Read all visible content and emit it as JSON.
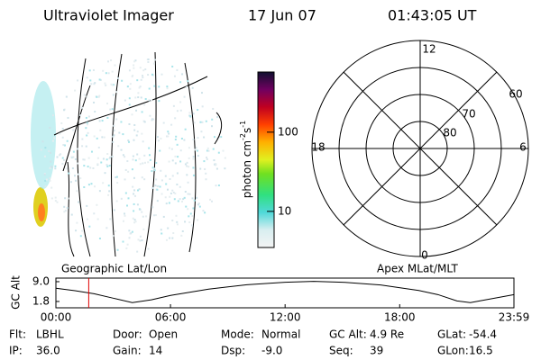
{
  "header": {
    "instrument": "Ultraviolet Imager",
    "date": "17 Jun 07",
    "time": "01:43:05 UT"
  },
  "left_panel": {
    "label": "Geographic Lat/Lon"
  },
  "colorbar": {
    "label": "photon cm",
    "exp1": "-2",
    "unit2": "s",
    "exp2": "-1",
    "log": true,
    "lim": [
      3.5,
      575
    ],
    "ticks": [
      10,
      100
    ]
  },
  "polar": {
    "label": "Apex MLat/MLT",
    "mlt_top": "12",
    "mlt_right": "6",
    "mlt_bottom": "0",
    "mlt_left": "18",
    "lat_labels": [
      "60",
      "70",
      "80"
    ]
  },
  "altitude_plot": {
    "ylabel": "GC Alt",
    "yticks": [
      {
        "value": 9,
        "label": "9.0"
      },
      1.8
    ],
    "ylim": [
      -0.5,
      10.3
    ],
    "xticks": [
      {
        "value": 0,
        "label": "00:00"
      },
      {
        "value": 6,
        "label": "06:00"
      },
      {
        "value": 12,
        "label": "12:00"
      },
      {
        "value": 18,
        "label": "18:00"
      },
      {
        "value": 23.983,
        "label": "23:59"
      }
    ],
    "xlim": [
      0,
      23.983
    ],
    "marker_time": 1.718,
    "x": [
      0,
      1,
      2,
      3,
      4,
      5,
      6,
      8,
      10,
      12,
      13.5,
      15,
      17,
      19,
      20,
      21,
      21.7,
      22.5,
      23.983
    ],
    "values": [
      6.6,
      5.7,
      4.6,
      3.0,
      1.4,
      2.4,
      4.0,
      6.3,
      7.9,
      8.8,
      9.1,
      8.8,
      7.8,
      5.8,
      4.3,
      2.0,
      1.4,
      2.4,
      4.3
    ]
  },
  "status": [
    {
      "label": "Flt:",
      "value": "LBHL"
    },
    {
      "label": "Door:",
      "value": "Open"
    },
    {
      "label": "Mode:",
      "value": "Normal"
    },
    {
      "label": "GC Alt:",
      "value": "4.9 Re"
    },
    {
      "label": "GLat:",
      "value": "-54.4"
    },
    {
      "label": "IP:",
      "value": "36.0"
    },
    {
      "label": "Gain:",
      "value": "14"
    },
    {
      "label": "Dsp:",
      "value": "-9.0"
    },
    {
      "label": "Seq:",
      "value": "39"
    },
    {
      "label": "GLon:",
      "value": "16.5"
    }
  ]
}
